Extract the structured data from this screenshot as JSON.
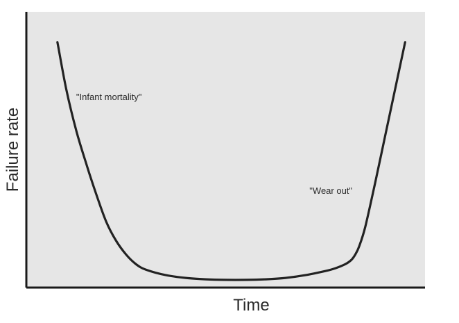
{
  "chart_data": {
    "type": "line",
    "title": "",
    "xlabel": "Time",
    "ylabel": "Failure rate",
    "xlim": [
      0,
      100
    ],
    "ylim": [
      0,
      100
    ],
    "grid": false,
    "legend": "none",
    "ticks": false,
    "background_color": "#e6e6e6",
    "line_color": "#222222",
    "axis_color": "#1a1a1a",
    "series": [
      {
        "x": [
          7.8,
          10,
          12.5,
          15,
          17.5,
          20,
          22.5,
          25,
          27.5,
          30,
          35,
          40,
          45,
          50,
          55,
          60,
          65,
          70,
          75,
          77.5,
          80,
          81.5,
          82.5,
          83.5,
          85,
          87.5,
          90,
          92.5,
          95
        ],
        "y": [
          89,
          72,
          57,
          45,
          34,
          24,
          17,
          12,
          8.5,
          6.5,
          4.5,
          3.5,
          3.0,
          2.8,
          2.8,
          3.0,
          3.5,
          4.5,
          6.0,
          7.0,
          8.5,
          10,
          12,
          15,
          22,
          38,
          55,
          72,
          89
        ]
      }
    ],
    "annotations": [
      {
        "text": "\"Infant mortality\"",
        "x": 12.5,
        "y": 68
      },
      {
        "text": "\"Wear out\"",
        "x": 71,
        "y": 34
      }
    ]
  }
}
